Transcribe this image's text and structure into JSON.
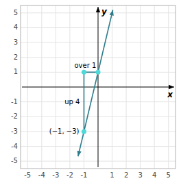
{
  "chart_data": {
    "type": "line",
    "xlabel": "x",
    "ylabel": "y",
    "xlim": [
      -5.5,
      5.5
    ],
    "ylim": [
      -5.5,
      5.5
    ],
    "xticks": [
      -5,
      -4,
      -3,
      -2,
      -1,
      1,
      2,
      3,
      4,
      5
    ],
    "yticks": [
      -5,
      -4,
      -3,
      -2,
      -1,
      1,
      2,
      3,
      4,
      5
    ],
    "grid": true,
    "series": [
      {
        "type": "line",
        "marker": "arrow",
        "color": "#2e7d8c",
        "x": [
          -1.42,
          1.05
        ],
        "values": [
          -4.68,
          5.2
        ]
      },
      {
        "type": "line",
        "color": "#2e7d8c",
        "x": [
          -1,
          -1,
          0
        ],
        "values": [
          -3,
          1,
          1
        ]
      },
      {
        "type": "scatter",
        "marker": "circle",
        "color": "#4dd9d9",
        "x": [
          -1,
          -1,
          0
        ],
        "values": [
          -3,
          1,
          1
        ]
      }
    ],
    "annotations": [
      {
        "text": "(−1, −3)",
        "x": -1,
        "y": -3
      },
      {
        "text": "up 4",
        "x": -1,
        "y": -1
      },
      {
        "text": "over 1",
        "x": -1,
        "y": 1
      }
    ]
  }
}
